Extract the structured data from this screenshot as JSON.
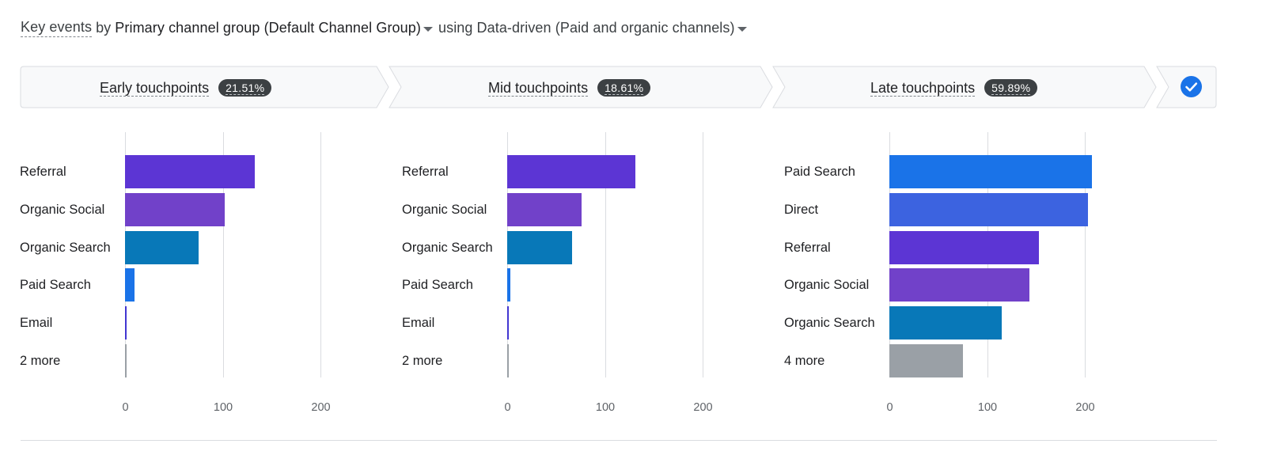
{
  "header": {
    "metric": "Key events",
    "by": "by",
    "dimension": "Primary channel group (Default Channel Group)",
    "using": "using",
    "model": "Data-driven (Paid and organic channels)"
  },
  "stages": [
    {
      "label": "Early touchpoints",
      "percent": "21.51%"
    },
    {
      "label": "Mid touchpoints",
      "percent": "18.61%"
    },
    {
      "label": "Late touchpoints",
      "percent": "59.89%"
    }
  ],
  "colors": {
    "referral": "#5c35d4",
    "organic_social": "#7141c9",
    "organic_search": "#0878b8",
    "paid_search": "#1a73e8",
    "direct": "#3c63e0",
    "email": "#4236d1",
    "more": "#9aa0a6",
    "check": "#1a73e8"
  },
  "chart_data": [
    {
      "type": "bar",
      "title": "Early touchpoints",
      "orientation": "horizontal",
      "categories": [
        "Referral",
        "Organic Social",
        "Organic Search",
        "Paid Search",
        "Email",
        "2 more"
      ],
      "values": [
        133,
        102,
        75,
        10,
        2,
        1
      ],
      "color_keys": [
        "referral",
        "organic_social",
        "organic_search",
        "paid_search",
        "email",
        "more"
      ],
      "xlim": [
        0,
        220
      ],
      "xticks": [
        "0",
        "100",
        "200"
      ]
    },
    {
      "type": "bar",
      "title": "Mid touchpoints",
      "orientation": "horizontal",
      "categories": [
        "Referral",
        "Organic Social",
        "Organic Search",
        "Paid Search",
        "Email",
        "2 more"
      ],
      "values": [
        131,
        76,
        66,
        3,
        1,
        1
      ],
      "color_keys": [
        "referral",
        "organic_social",
        "organic_search",
        "paid_search",
        "email",
        "more"
      ],
      "xlim": [
        0,
        220
      ],
      "xticks": [
        "0",
        "100",
        "200"
      ]
    },
    {
      "type": "bar",
      "title": "Late touchpoints",
      "orientation": "horizontal",
      "categories": [
        "Paid Search",
        "Direct",
        "Referral",
        "Organic Social",
        "Organic Search",
        "4 more"
      ],
      "values": [
        207,
        203,
        153,
        143,
        115,
        75
      ],
      "color_keys": [
        "paid_search",
        "direct",
        "referral",
        "organic_social",
        "organic_search",
        "more"
      ],
      "xlim": [
        0,
        220
      ],
      "xticks": [
        "0",
        "100",
        "200"
      ]
    }
  ]
}
